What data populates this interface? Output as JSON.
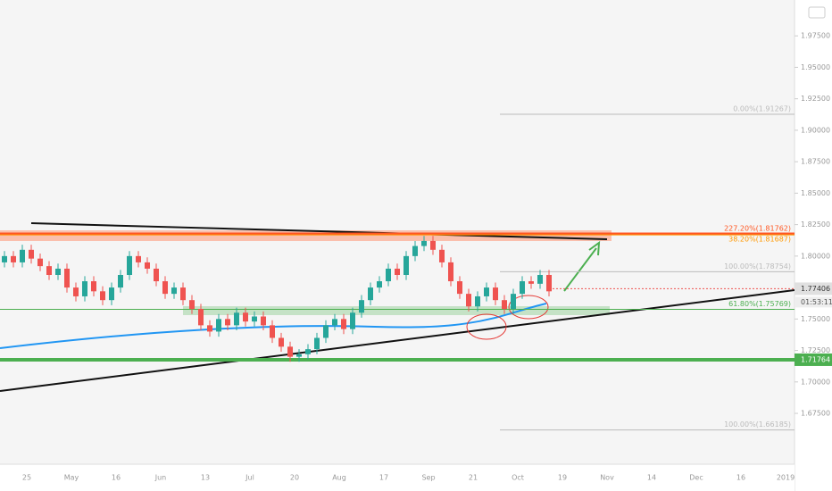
{
  "chart_data": {
    "type": "candlestick",
    "ylim": [
      1.6346,
      2.0035
    ],
    "yticks": [
      {
        "value": 1.675,
        "label": "1.67500"
      },
      {
        "value": 1.7,
        "label": "1.70000"
      },
      {
        "value": 1.725,
        "label": "1.72500"
      },
      {
        "value": 1.75,
        "label": "1.75000"
      },
      {
        "value": 1.8,
        "label": "1.80000"
      },
      {
        "value": 1.825,
        "label": "1.82500"
      },
      {
        "value": 1.85,
        "label": "1.85000"
      },
      {
        "value": 1.875,
        "label": "1.87500"
      },
      {
        "value": 1.9,
        "label": "1.90000"
      },
      {
        "value": 1.925,
        "label": "1.92500"
      },
      {
        "value": 1.95,
        "label": "1.95000"
      },
      {
        "value": 1.975,
        "label": "1.97500"
      }
    ],
    "x_labels": [
      "25",
      "May",
      "16",
      "Jun",
      "13",
      "Jul",
      "20",
      "Aug",
      "17",
      "Sep",
      "21",
      "Oct",
      "19",
      "Nov",
      "14",
      "Dec",
      "16",
      "2019"
    ],
    "open": [
      1.795,
      1.8,
      1.795,
      1.805,
      1.798,
      1.792,
      1.785,
      1.79,
      1.775,
      1.768,
      1.78,
      1.772,
      1.765,
      1.775,
      1.785,
      1.8,
      1.795,
      1.79,
      1.78,
      1.77,
      1.775,
      1.765,
      1.758,
      1.745,
      1.74,
      1.75,
      1.745,
      1.755,
      1.748,
      1.752,
      1.745,
      1.735,
      1.728,
      1.72,
      1.722,
      1.726,
      1.735,
      1.745,
      1.75,
      1.742,
      1.755,
      1.765,
      1.775,
      1.78,
      1.79,
      1.785,
      1.8,
      1.808,
      1.812,
      1.805,
      1.795,
      1.78,
      1.77,
      1.76,
      1.768,
      1.775,
      1.765,
      1.758,
      1.77,
      1.78,
      1.778,
      1.785
    ],
    "high": [
      1.804,
      1.804,
      1.809,
      1.809,
      1.802,
      1.796,
      1.794,
      1.794,
      1.779,
      1.784,
      1.784,
      1.776,
      1.779,
      1.789,
      1.804,
      1.804,
      1.799,
      1.794,
      1.784,
      1.779,
      1.779,
      1.769,
      1.762,
      1.749,
      1.754,
      1.754,
      1.759,
      1.759,
      1.756,
      1.756,
      1.749,
      1.739,
      1.732,
      1.726,
      1.73,
      1.739,
      1.749,
      1.754,
      1.754,
      1.759,
      1.769,
      1.779,
      1.784,
      1.794,
      1.794,
      1.804,
      1.812,
      1.816,
      1.816,
      1.809,
      1.799,
      1.784,
      1.774,
      1.772,
      1.779,
      1.779,
      1.769,
      1.774,
      1.784,
      1.784,
      1.789,
      1.789
    ],
    "low": [
      1.791,
      1.791,
      1.791,
      1.794,
      1.788,
      1.781,
      1.781,
      1.771,
      1.764,
      1.764,
      1.768,
      1.761,
      1.761,
      1.771,
      1.781,
      1.791,
      1.786,
      1.776,
      1.766,
      1.766,
      1.761,
      1.754,
      1.741,
      1.736,
      1.736,
      1.741,
      1.741,
      1.744,
      1.744,
      1.741,
      1.731,
      1.724,
      1.716,
      1.716,
      1.718,
      1.722,
      1.731,
      1.741,
      1.738,
      1.738,
      1.751,
      1.761,
      1.771,
      1.776,
      1.781,
      1.781,
      1.796,
      1.804,
      1.801,
      1.791,
      1.776,
      1.766,
      1.756,
      1.756,
      1.764,
      1.761,
      1.754,
      1.754,
      1.766,
      1.774,
      1.774,
      1.768
    ],
    "close": [
      1.8,
      1.795,
      1.805,
      1.798,
      1.792,
      1.785,
      1.79,
      1.775,
      1.768,
      1.78,
      1.772,
      1.765,
      1.775,
      1.785,
      1.8,
      1.795,
      1.79,
      1.78,
      1.77,
      1.775,
      1.765,
      1.758,
      1.745,
      1.74,
      1.75,
      1.745,
      1.755,
      1.748,
      1.752,
      1.745,
      1.735,
      1.728,
      1.72,
      1.722,
      1.726,
      1.735,
      1.745,
      1.75,
      1.742,
      1.755,
      1.765,
      1.775,
      1.78,
      1.79,
      1.785,
      1.8,
      1.808,
      1.812,
      1.805,
      1.795,
      1.78,
      1.77,
      1.76,
      1.768,
      1.775,
      1.765,
      1.758,
      1.77,
      1.78,
      1.778,
      1.785,
      1.772
    ],
    "up_color": "#26a69a",
    "down_color": "#ef5350",
    "levels": [
      {
        "label": "0.00%(1.91267)",
        "price": 1.91267,
        "color": "#bbbbbb"
      },
      {
        "label": "227.20%(1.81762)",
        "price": 1.81762,
        "color": "#ff5722"
      },
      {
        "label": "38.20%(1.81687)",
        "price": 1.81687,
        "color": "#ff9800"
      },
      {
        "label": "100.00%(1.78754)",
        "price": 1.78754,
        "color": "#bbbbbb"
      },
      {
        "label": "61.80%(1.75769)",
        "price": 1.75769,
        "color": "#4caf50"
      },
      {
        "label": "100.00%(1.66185)",
        "price": 1.66185,
        "color": "#bbbbbb"
      }
    ],
    "last_price": {
      "label": "1.77406",
      "price": 1.77406,
      "countdown": "01:53:11"
    },
    "support": {
      "label": "1.71764",
      "price": 1.71764,
      "color": "#4caf50"
    }
  }
}
